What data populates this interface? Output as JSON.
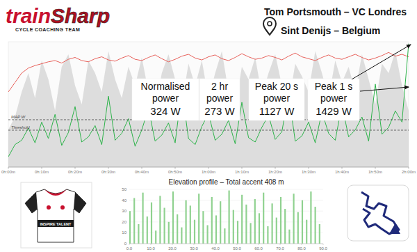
{
  "header": {
    "logo_parts": [
      "train",
      "Sharp"
    ],
    "logo_tagline": "CYCLE COACHING TEAM",
    "rider": "Tom Portsmouth – VC Londres",
    "location": "Sint Denijs – Belgium",
    "jersey_text": "INSPIRE TALENT"
  },
  "chart_data": [
    {
      "type": "line",
      "x": [
        0,
        2,
        4,
        6,
        8,
        10,
        12,
        14,
        16,
        18,
        20,
        22,
        24,
        26,
        28,
        30,
        32,
        34,
        36,
        38,
        40,
        42,
        44,
        46,
        48,
        50,
        52,
        54,
        56,
        58,
        60,
        62,
        64,
        66,
        68,
        70,
        72,
        74,
        76,
        78,
        80,
        82,
        84,
        86,
        88,
        90,
        92,
        94,
        96,
        98,
        100,
        102,
        104,
        106,
        108,
        110,
        112,
        114,
        116,
        118,
        120
      ],
      "xlim": [
        0,
        120
      ],
      "xticks": [
        {
          "value": 0,
          "label": "0h:00m"
        },
        {
          "value": 10,
          "label": "0h:10m"
        },
        {
          "value": 20,
          "label": "0h:20m"
        },
        {
          "value": 30,
          "label": "0h:30m"
        },
        {
          "value": 40,
          "label": "0h:40m"
        },
        {
          "value": 50,
          "label": "0h:50m"
        },
        {
          "value": 60,
          "label": "1h:00m"
        },
        {
          "value": 70,
          "label": "1h:10m"
        },
        {
          "value": 80,
          "label": "1h:20m"
        },
        {
          "value": 90,
          "label": "1h:30m"
        },
        {
          "value": 100,
          "label": "1h:40m"
        },
        {
          "value": 110,
          "label": "1h:50m"
        },
        {
          "value": 120,
          "label": "2h:00m"
        }
      ],
      "ylim": [
        0,
        1450
      ],
      "y2lim": [
        0,
        200
      ],
      "tick_labels": "x",
      "grid": false,
      "series": [
        {
          "type": "area",
          "color": "#d3d3d3",
          "axis": "y2",
          "values": [
            60,
            80,
            120,
            150,
            110,
            170,
            140,
            90,
            160,
            180,
            130,
            100,
            170,
            150,
            120,
            185,
            140,
            110,
            160,
            130,
            175,
            120,
            90,
            150,
            180,
            140,
            100,
            165,
            130,
            170,
            110,
            150,
            185,
            120,
            95,
            160,
            140,
            175,
            115,
            150,
            180,
            130,
            100,
            165,
            145,
            120,
            185,
            150,
            110,
            170,
            135,
            160,
            120,
            180,
            140,
            100,
            165,
            150,
            185,
            130,
            90
          ]
        },
        {
          "type": "line",
          "color": "#e8605a",
          "axis": "y2",
          "values": [
            120,
            135,
            150,
            158,
            162,
            165,
            168,
            170,
            166,
            172,
            175,
            170,
            168,
            173,
            176,
            171,
            169,
            174,
            178,
            172,
            170,
            175,
            179,
            173,
            168,
            172,
            177,
            180,
            174,
            171,
            176,
            179,
            173,
            170,
            175,
            181,
            176,
            172,
            174,
            178,
            175,
            171,
            177,
            182,
            176,
            173,
            170,
            175,
            179,
            174,
            172,
            176,
            180,
            175,
            171,
            174,
            178,
            183,
            177,
            180,
            176
          ]
        },
        {
          "type": "line",
          "color": "#2db34a",
          "values": [
            120,
            260,
            310,
            450,
            280,
            520,
            330,
            610,
            250,
            400,
            700,
            290,
            350,
            480,
            260,
            820,
            310,
            390,
            560,
            240,
            430,
            680,
            300,
            370,
            510,
            280,
            900,
            330,
            260,
            470,
            620,
            310,
            380,
            540,
            270,
            750,
            340,
            290,
            460,
            600,
            320,
            410,
            850,
            300,
            360,
            520,
            280,
            640,
            390,
            310,
            720,
            350,
            430,
            580,
            300,
            960,
            380,
            460,
            650,
            520,
            1429
          ]
        }
      ],
      "reference_lines": [
        {
          "label": "MAP W",
          "value": 548,
          "line_style": "dashed"
        },
        {
          "label": "Threshold",
          "value": 427,
          "line_style": "dashed"
        }
      ],
      "annotations": [
        {
          "lines": [
            "Normalised",
            "power",
            "324 W"
          ]
        },
        {
          "lines": [
            "2 hr",
            "power",
            "273 W"
          ]
        },
        {
          "lines": [
            "Peak 20 s",
            "power",
            "1127 W"
          ]
        },
        {
          "lines": [
            "Peak 1 s",
            "power",
            "1429 W"
          ]
        }
      ]
    },
    {
      "type": "bar",
      "title": "Elevation profile – Total accent 408 m",
      "x": [
        0,
        2,
        4,
        6,
        8,
        10,
        12,
        14,
        16,
        18,
        20,
        22,
        24,
        26,
        28,
        30,
        32,
        34,
        36,
        38,
        40,
        42,
        44,
        46,
        48,
        50,
        52,
        54,
        56,
        58,
        60,
        62,
        64,
        66,
        68,
        70,
        72,
        74,
        76,
        78,
        80,
        82,
        84,
        86,
        88
      ],
      "values": [
        30,
        42,
        18,
        47,
        25,
        38,
        12,
        44,
        33,
        20,
        48,
        27,
        15,
        40,
        35,
        22,
        46,
        30,
        17,
        43,
        26,
        39,
        14,
        49,
        31,
        21,
        45,
        36,
        19,
        41,
        28,
        47,
        16,
        37,
        24,
        43,
        32,
        13,
        46,
        29,
        40,
        22,
        48,
        34,
        18
      ],
      "color": "#8fd18f",
      "xlim": [
        0,
        90
      ],
      "xticks": [
        {
          "value": 0,
          "label": "0.0"
        },
        {
          "value": 10,
          "label": "10.0"
        },
        {
          "value": 20,
          "label": "20.0"
        },
        {
          "value": 30,
          "label": "30.0"
        },
        {
          "value": 40,
          "label": "40.0"
        },
        {
          "value": 50,
          "label": "50.0"
        },
        {
          "value": 60,
          "label": "60.0"
        },
        {
          "value": 70,
          "label": "70.0"
        },
        {
          "value": 80,
          "label": "80.0"
        },
        {
          "value": 90,
          "label": "90.0"
        }
      ],
      "ylim": [
        0,
        50
      ],
      "yticks": [
        0,
        10,
        20,
        30,
        40,
        50
      ],
      "grid": true
    }
  ]
}
